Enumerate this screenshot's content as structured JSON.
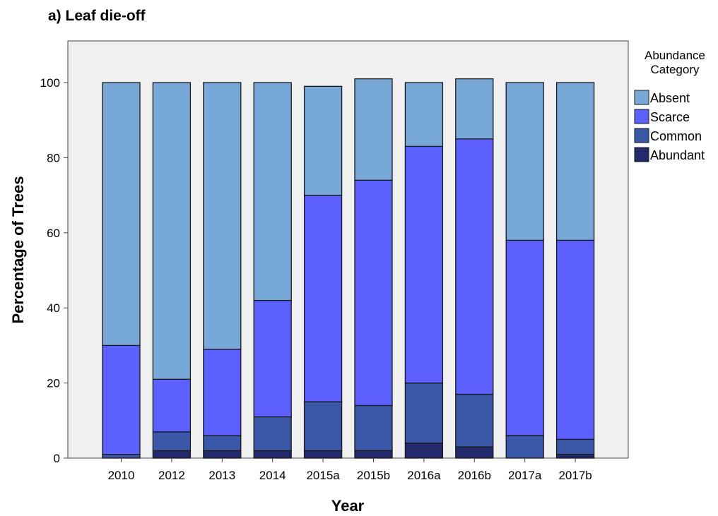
{
  "chart_data": {
    "type": "bar",
    "stacked": true,
    "title": "a)   Leaf die-off",
    "xlabel": "Year",
    "ylabel": "Percentage of Trees",
    "ylim": [
      0,
      110
    ],
    "yticks": [
      0,
      20,
      40,
      60,
      80,
      100
    ],
    "grid": false,
    "legend_title": [
      "Abundance",
      "Category"
    ],
    "legend_position": "right",
    "categories": [
      "2010",
      "2012",
      "2013",
      "2014",
      "2015a",
      "2015b",
      "2016a",
      "2016b",
      "2017a",
      "2017b"
    ],
    "series": [
      {
        "name": "Abundant",
        "color": "#232a6b",
        "values": [
          0,
          2,
          2,
          2,
          2,
          2,
          4,
          3,
          0,
          1
        ]
      },
      {
        "name": "Common",
        "color": "#3b58a8",
        "values": [
          1,
          5,
          4,
          9,
          13,
          12,
          16,
          14,
          6,
          4
        ]
      },
      {
        "name": "Scarce",
        "color": "#5b60ff",
        "values": [
          29,
          14,
          23,
          31,
          55,
          60,
          63,
          68,
          52,
          53
        ]
      },
      {
        "name": "Absent",
        "color": "#78a8d8",
        "values": [
          70,
          79,
          71,
          58,
          29,
          27,
          17,
          16,
          42,
          42
        ]
      }
    ]
  }
}
